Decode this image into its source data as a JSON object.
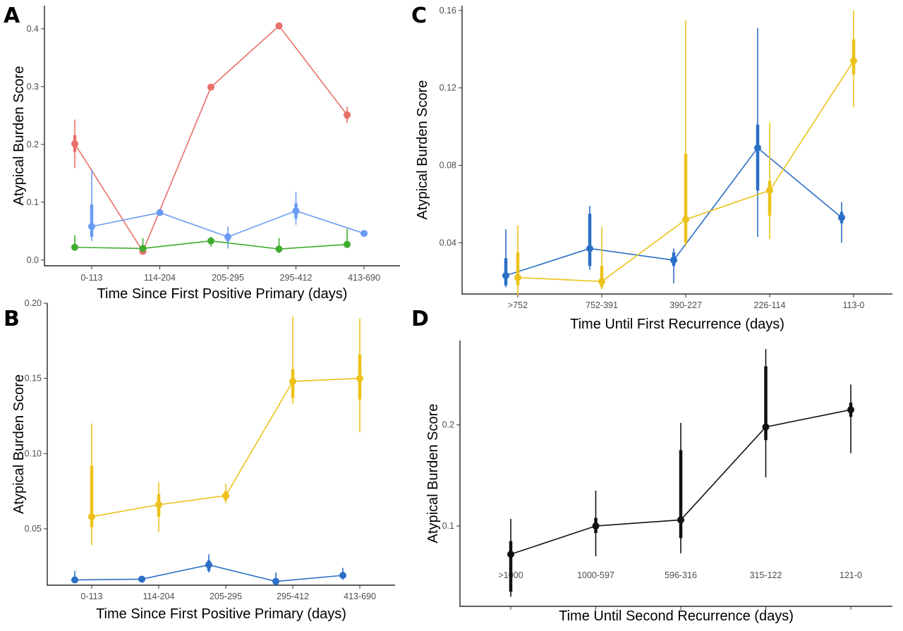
{
  "chart_data": [
    {
      "panel": "A",
      "type": "line",
      "xlabel": "Time Since First Positive Primary (days)",
      "ylabel": "Atypical Burden Score",
      "categories": [
        "0-113",
        "114-204",
        "205-295",
        "295-412",
        "413-690"
      ],
      "ylim": [
        -0.01,
        0.44
      ],
      "yticks": [
        0.0,
        0.1,
        0.2,
        0.3,
        0.4
      ],
      "ytick_labels": [
        "0.0",
        "0.1",
        "0.2",
        "0.3",
        "0.4"
      ],
      "grid": false,
      "series": [
        {
          "color": "#e8706a",
          "offset": -0.2,
          "values": [
            0.201,
            0.015,
            0.299,
            0.405,
            0.251
          ],
          "ci_inner": [
            [
              0.187,
              0.216
            ],
            [
              0.012,
              0.018
            ],
            [
              0.295,
              0.302
            ],
            [
              0.402,
              0.408
            ],
            [
              0.244,
              0.257
            ]
          ],
          "ci_outer": [
            [
              0.159,
              0.243
            ],
            [
              0.01,
              0.02
            ],
            [
              0.293,
              0.304
            ],
            [
              0.401,
              0.409
            ],
            [
              0.237,
              0.265
            ]
          ]
        },
        {
          "color": "#6b9cf5",
          "offset": 0.0,
          "values": [
            0.058,
            0.082,
            0.04,
            0.085,
            0.046
          ],
          "ci_inner": [
            [
              0.04,
              0.096
            ],
            [
              0.079,
              0.085
            ],
            [
              0.032,
              0.046
            ],
            [
              0.072,
              0.098
            ],
            [
              0.044,
              0.048
            ]
          ],
          "ci_outer": [
            [
              0.033,
              0.157
            ],
            [
              0.077,
              0.087
            ],
            [
              0.02,
              0.058
            ],
            [
              0.061,
              0.118
            ],
            [
              0.043,
              0.049
            ]
          ]
        },
        {
          "color": "#3fad2e",
          "offset": -0.2,
          "values": [
            0.022,
            0.02,
            0.033,
            0.019,
            0.027
          ],
          "ci_inner": [
            [
              0.02,
              0.025
            ],
            [
              0.017,
              0.023
            ],
            [
              0.029,
              0.036
            ],
            [
              0.016,
              0.023
            ],
            [
              0.024,
              0.031
            ]
          ],
          "ci_outer": [
            [
              0.016,
              0.043
            ],
            [
              0.015,
              0.038
            ],
            [
              0.023,
              0.04
            ],
            [
              0.012,
              0.038
            ],
            [
              0.021,
              0.054
            ]
          ]
        }
      ]
    },
    {
      "panel": "B",
      "type": "line",
      "xlabel": "Time Since First Positive Primary (days)",
      "ylabel": "Atypical Burden Score",
      "categories": [
        "0-113",
        "114-204",
        "205-295",
        "295-412",
        "413-690"
      ],
      "ylim": [
        0.0125,
        0.2
      ],
      "yticks": [
        0.05,
        0.1,
        0.15,
        0.2
      ],
      "ytick_labels": [
        "0.05",
        "0.10",
        "0.15",
        "0.20"
      ],
      "grid": false,
      "series": [
        {
          "color": "#ecc21a",
          "offset": 0.0,
          "values": [
            0.058,
            0.066,
            0.072,
            0.148,
            0.15
          ],
          "ci_inner": [
            [
              0.051,
              0.092
            ],
            [
              0.058,
              0.073
            ],
            [
              0.069,
              0.075
            ],
            [
              0.137,
              0.156
            ],
            [
              0.136,
              0.166
            ]
          ],
          "ci_outer": [
            [
              0.039,
              0.12
            ],
            [
              0.048,
              0.081
            ],
            [
              0.067,
              0.08
            ],
            [
              0.133,
              0.191
            ],
            [
              0.114,
              0.19
            ]
          ]
        },
        {
          "color": "#2a6fc6",
          "offset": -0.2,
          "values": [
            0.016,
            0.0165,
            0.026,
            0.015,
            0.019
          ],
          "ci_inner": [
            [
              0.015,
              0.017
            ],
            [
              0.016,
              0.017
            ],
            [
              0.022,
              0.029
            ],
            [
              0.014,
              0.017
            ],
            [
              0.017,
              0.02
            ]
          ],
          "ci_outer": [
            [
              0.014,
              0.022
            ],
            [
              0.015,
              0.018
            ],
            [
              0.021,
              0.033
            ],
            [
              0.012,
              0.021
            ],
            [
              0.016,
              0.024
            ]
          ]
        }
      ]
    },
    {
      "panel": "C",
      "type": "line",
      "xlabel": "Time Until First Recurrence (days)",
      "ylabel": "Atypical Burden Score",
      "categories": [
        ">752",
        "752-391",
        "390-227",
        "226-114",
        "113-0"
      ],
      "ylim": [
        0.0135,
        0.1625
      ],
      "yticks": [
        0.04,
        0.08,
        0.12,
        0.16
      ],
      "ytick_labels": [
        "0.04",
        "0.08",
        "0.12",
        "0.16"
      ],
      "grid": false,
      "series": [
        {
          "color": "#2a6fc6",
          "offset": -0.2,
          "values": [
            0.023,
            0.037,
            0.031,
            0.089,
            0.053
          ],
          "ci_inner": [
            [
              0.018,
              0.032
            ],
            [
              0.028,
              0.055
            ],
            [
              0.028,
              0.035
            ],
            [
              0.067,
              0.101
            ],
            [
              0.05,
              0.056
            ]
          ],
          "ci_outer": [
            [
              0.017,
              0.047
            ],
            [
              0.026,
              0.059
            ],
            [
              0.019,
              0.037
            ],
            [
              0.043,
              0.151
            ],
            [
              0.04,
              0.061
            ]
          ]
        },
        {
          "color": "#ecc21a",
          "offset": 0.0,
          "values": [
            0.022,
            0.02,
            0.052,
            0.067,
            0.134
          ],
          "ci_inner": [
            [
              0.018,
              0.035
            ],
            [
              0.017,
              0.028
            ],
            [
              0.04,
              0.086
            ],
            [
              0.054,
              0.072
            ],
            [
              0.127,
              0.145
            ]
          ],
          "ci_outer": [
            [
              0.013,
              0.049
            ],
            [
              0.016,
              0.048
            ],
            [
              0.038,
              0.155
            ],
            [
              0.042,
              0.102
            ],
            [
              0.11,
              0.16
            ]
          ]
        }
      ]
    },
    {
      "panel": "D",
      "type": "line",
      "xlabel": "Time Until Second Recurrence (days)",
      "ylabel": "Atypical Burden Score",
      "categories": [
        ">1000",
        "1000-597",
        "596-316",
        "315-122",
        "121-0"
      ],
      "ylim": [
        0.0205,
        0.2835
      ],
      "yticks": [
        0.1,
        0.2
      ],
      "ytick_labels": [
        "0.1",
        "0.2"
      ],
      "grid": false,
      "series": [
        {
          "color": "#111111",
          "offset": 0.0,
          "values": [
            0.072,
            0.1,
            0.106,
            0.198,
            0.215
          ],
          "ci_inner": [
            [
              0.035,
              0.085
            ],
            [
              0.093,
              0.108
            ],
            [
              0.088,
              0.175
            ],
            [
              0.185,
              0.258
            ],
            [
              0.208,
              0.222
            ]
          ],
          "ci_outer": [
            [
              0.03,
              0.107
            ],
            [
              0.07,
              0.135
            ],
            [
              0.073,
              0.202
            ],
            [
              0.148,
              0.275
            ],
            [
              0.172,
              0.24
            ]
          ]
        }
      ]
    }
  ]
}
